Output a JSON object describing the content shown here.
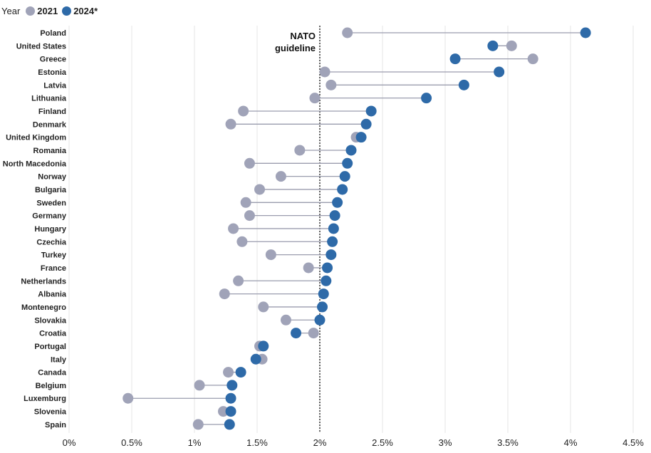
{
  "legend": {
    "title": "Year",
    "items": [
      {
        "label": "2021",
        "color": "#a0a3b8"
      },
      {
        "label": "2024*",
        "color": "#2e6aa8"
      }
    ]
  },
  "chart_data": {
    "type": "dumbbell",
    "title": "",
    "xlabel": "",
    "ylabel": "",
    "xlim": [
      0,
      4.5
    ],
    "x_ticks": [
      0,
      0.5,
      1,
      1.5,
      2,
      2.5,
      3,
      3.5,
      4,
      4.5
    ],
    "x_tick_labels": [
      "0%",
      "0.5%",
      "1%",
      "1.5%",
      "2%",
      "2.5%",
      "3%",
      "3.5%",
      "4%",
      "4.5%"
    ],
    "grid": "vertical",
    "legend_position": "top-left",
    "reference_line": {
      "x": 2,
      "label_lines": [
        "NATO",
        "guideline"
      ]
    },
    "series": [
      {
        "name": "2021",
        "color": "#a0a3b8",
        "values": [
          2.22,
          3.53,
          3.7,
          2.04,
          2.09,
          1.96,
          1.39,
          1.29,
          2.29,
          1.84,
          1.44,
          1.69,
          1.52,
          1.41,
          1.44,
          1.31,
          1.38,
          1.61,
          1.91,
          1.35,
          1.24,
          1.55,
          1.73,
          1.95,
          1.52,
          1.54,
          1.27,
          1.04,
          0.47,
          1.23,
          1.03
        ]
      },
      {
        "name": "2024*",
        "color": "#2e6aa8",
        "values": [
          4.12,
          3.38,
          3.08,
          3.43,
          3.15,
          2.85,
          2.41,
          2.37,
          2.33,
          2.25,
          2.22,
          2.2,
          2.18,
          2.14,
          2.12,
          2.11,
          2.1,
          2.09,
          2.06,
          2.05,
          2.03,
          2.02,
          2.0,
          1.81,
          1.55,
          1.49,
          1.37,
          1.3,
          1.29,
          1.29,
          1.28
        ]
      }
    ],
    "categories": [
      "Poland",
      "United States",
      "Greece",
      "Estonia",
      "Latvia",
      "Lithuania",
      "Finland",
      "Denmark",
      "United Kingdom",
      "Romania",
      "North Macedonia",
      "Norway",
      "Bulgaria",
      "Sweden",
      "Germany",
      "Hungary",
      "Czechia",
      "Turkey",
      "France",
      "Netherlands",
      "Albania",
      "Montenegro",
      "Slovakia",
      "Croatia",
      "Portugal",
      "Italy",
      "Canada",
      "Belgium",
      "Luxemburg",
      "Slovenia",
      "Spain"
    ]
  }
}
